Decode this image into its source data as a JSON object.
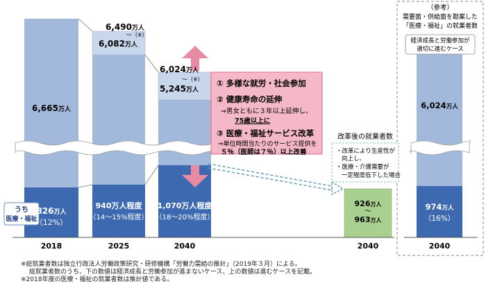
{
  "chart_data": {
    "type": "bar",
    "categories": [
      "2018",
      "2025",
      "2040",
      "2040",
      "2040"
    ],
    "series": [
      {
        "name": "total_employed_10k",
        "values": [
          6665,
          6082,
          5245,
          null,
          6024
        ]
      },
      {
        "name": "medical_welfare_10k",
        "values": [
          826,
          940,
          1070,
          null,
          974
        ]
      }
    ],
    "bar_labels": {
      "b2018_total": "6,665",
      "b2018_sub": "826",
      "b2018_pct": "（12%）",
      "b2025_top": "6,490",
      "b2025_mid": "6,082",
      "b2025_sub": "940万人程度",
      "b2025_pct": "（14～15%程度）",
      "b2040_top": "6,024",
      "b2040_mid": "5,245",
      "b2040_sub": "1,070万人程度",
      "b2040_pct": "（18～20%程度）",
      "reform_val1": "926",
      "reform_val2": "963",
      "ref_total": "6,024",
      "ref_sub": "974",
      "ref_pct": "（16%）"
    },
    "unit_man": "万人",
    "asterisk": "（※）",
    "tilde": "～",
    "legend_label_1": "うち",
    "legend_label_2": "医療・福祉",
    "reform_box": {
      "item1": "① 多様な就労・社会参加",
      "item2_title": "② 健康寿命の延伸",
      "item2_line1": "⇒男女ともに３年以上延伸し、",
      "item2_line2": "75歳以上に",
      "item3_title": "③ 医療・福祉サービス改革",
      "item3_line1": "⇒単位時間当たりのサービス提供を",
      "item3_line2": "５％（医師は７％）以上改善"
    },
    "reform_label": "改革後の就業者数",
    "reform_bullets": [
      "・改革により生産性が",
      "向上し、",
      "・医療・介護需要が",
      "一定程度低下した場合"
    ],
    "reference": {
      "title": "（参考）",
      "line1": "需要面・供給面を勘案した",
      "line2": "「医療・福祉」の就業者数",
      "case1": "経済成長と労働参加が",
      "case2": "適切に進むケース"
    },
    "notes": [
      "※総就業者数は独立行政法人労働政策研究・研修機構「労働力需給の推計」（2019年３月）による。",
      "総就業者数のうち、下の数値は経済成長と労働参加が進まないケース、上の数値は進むケースを記載。",
      "※2018年度の医療・福祉の就業者数は推計値である。"
    ]
  },
  "colors": {
    "light_bar": "#a3b9dc",
    "dark_bar": "#3d69b0",
    "green": "#a9d08e",
    "pink_box": "#f4b8c8",
    "pink_border": "#e06a8a",
    "arrow": "#e88aa4",
    "dashed": "#5aa0b0"
  }
}
